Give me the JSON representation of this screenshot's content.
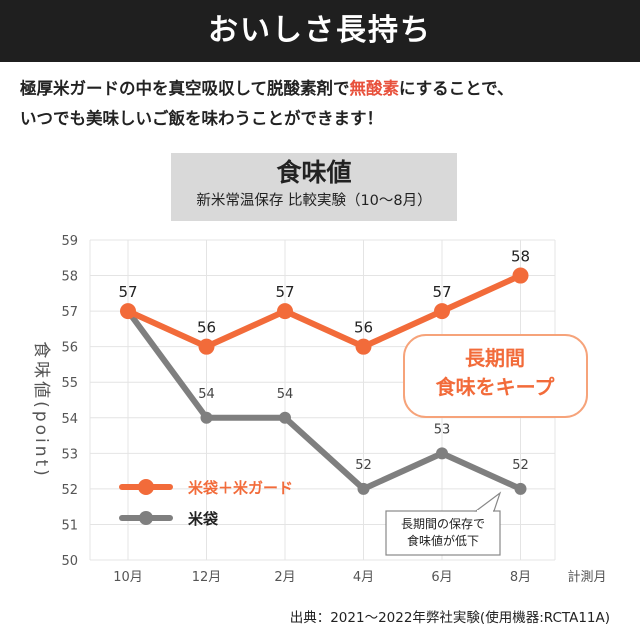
{
  "banner_title": "おいしさ長持ち",
  "description": {
    "line1_pre": "極厚米ガードの中を真空吸収して脱酸素剤で",
    "line1_highlight": "無酸素",
    "line1_post": "にすることで、",
    "line2": "いつでも美味しいご飯を味わうことができます！"
  },
  "chart_title": "食味値",
  "chart_subtitle": "新米常温保存 比較実験（10～8月）",
  "source": "出典：2021～2022年弊社実験(使用機器:RCTA11A)",
  "colors": {
    "orange": "#f26b3a",
    "gray": "#7f7f7f",
    "highlight_red": "#e8513c"
  },
  "chart_data": {
    "type": "line",
    "categories": [
      "10月",
      "12月",
      "2月",
      "4月",
      "6月",
      "8月"
    ],
    "xlabel": "計測月",
    "ylabel": "食味値(point)",
    "ylim": [
      50,
      59
    ],
    "yticks": [
      "50",
      "51",
      "52",
      "53",
      "54",
      "55",
      "56",
      "57",
      "58",
      "59"
    ],
    "grid": true,
    "legend_position": "bottom-left",
    "series": [
      {
        "name": "米袋＋米ガード",
        "values": [
          57,
          56,
          57,
          56,
          57,
          58
        ],
        "labels": [
          "57",
          "56",
          "57",
          "56",
          "57",
          "58"
        ]
      },
      {
        "name": "米袋",
        "values": [
          57,
          54,
          54,
          52,
          53,
          52
        ],
        "labels": [
          "",
          "54",
          "54",
          "52",
          "53",
          "52"
        ]
      }
    ],
    "annotations": [
      {
        "text_lines": [
          "長期間",
          "食味をキープ"
        ]
      },
      {
        "text_lines": [
          "長期間の保存で",
          "食味値が低下"
        ]
      }
    ]
  }
}
